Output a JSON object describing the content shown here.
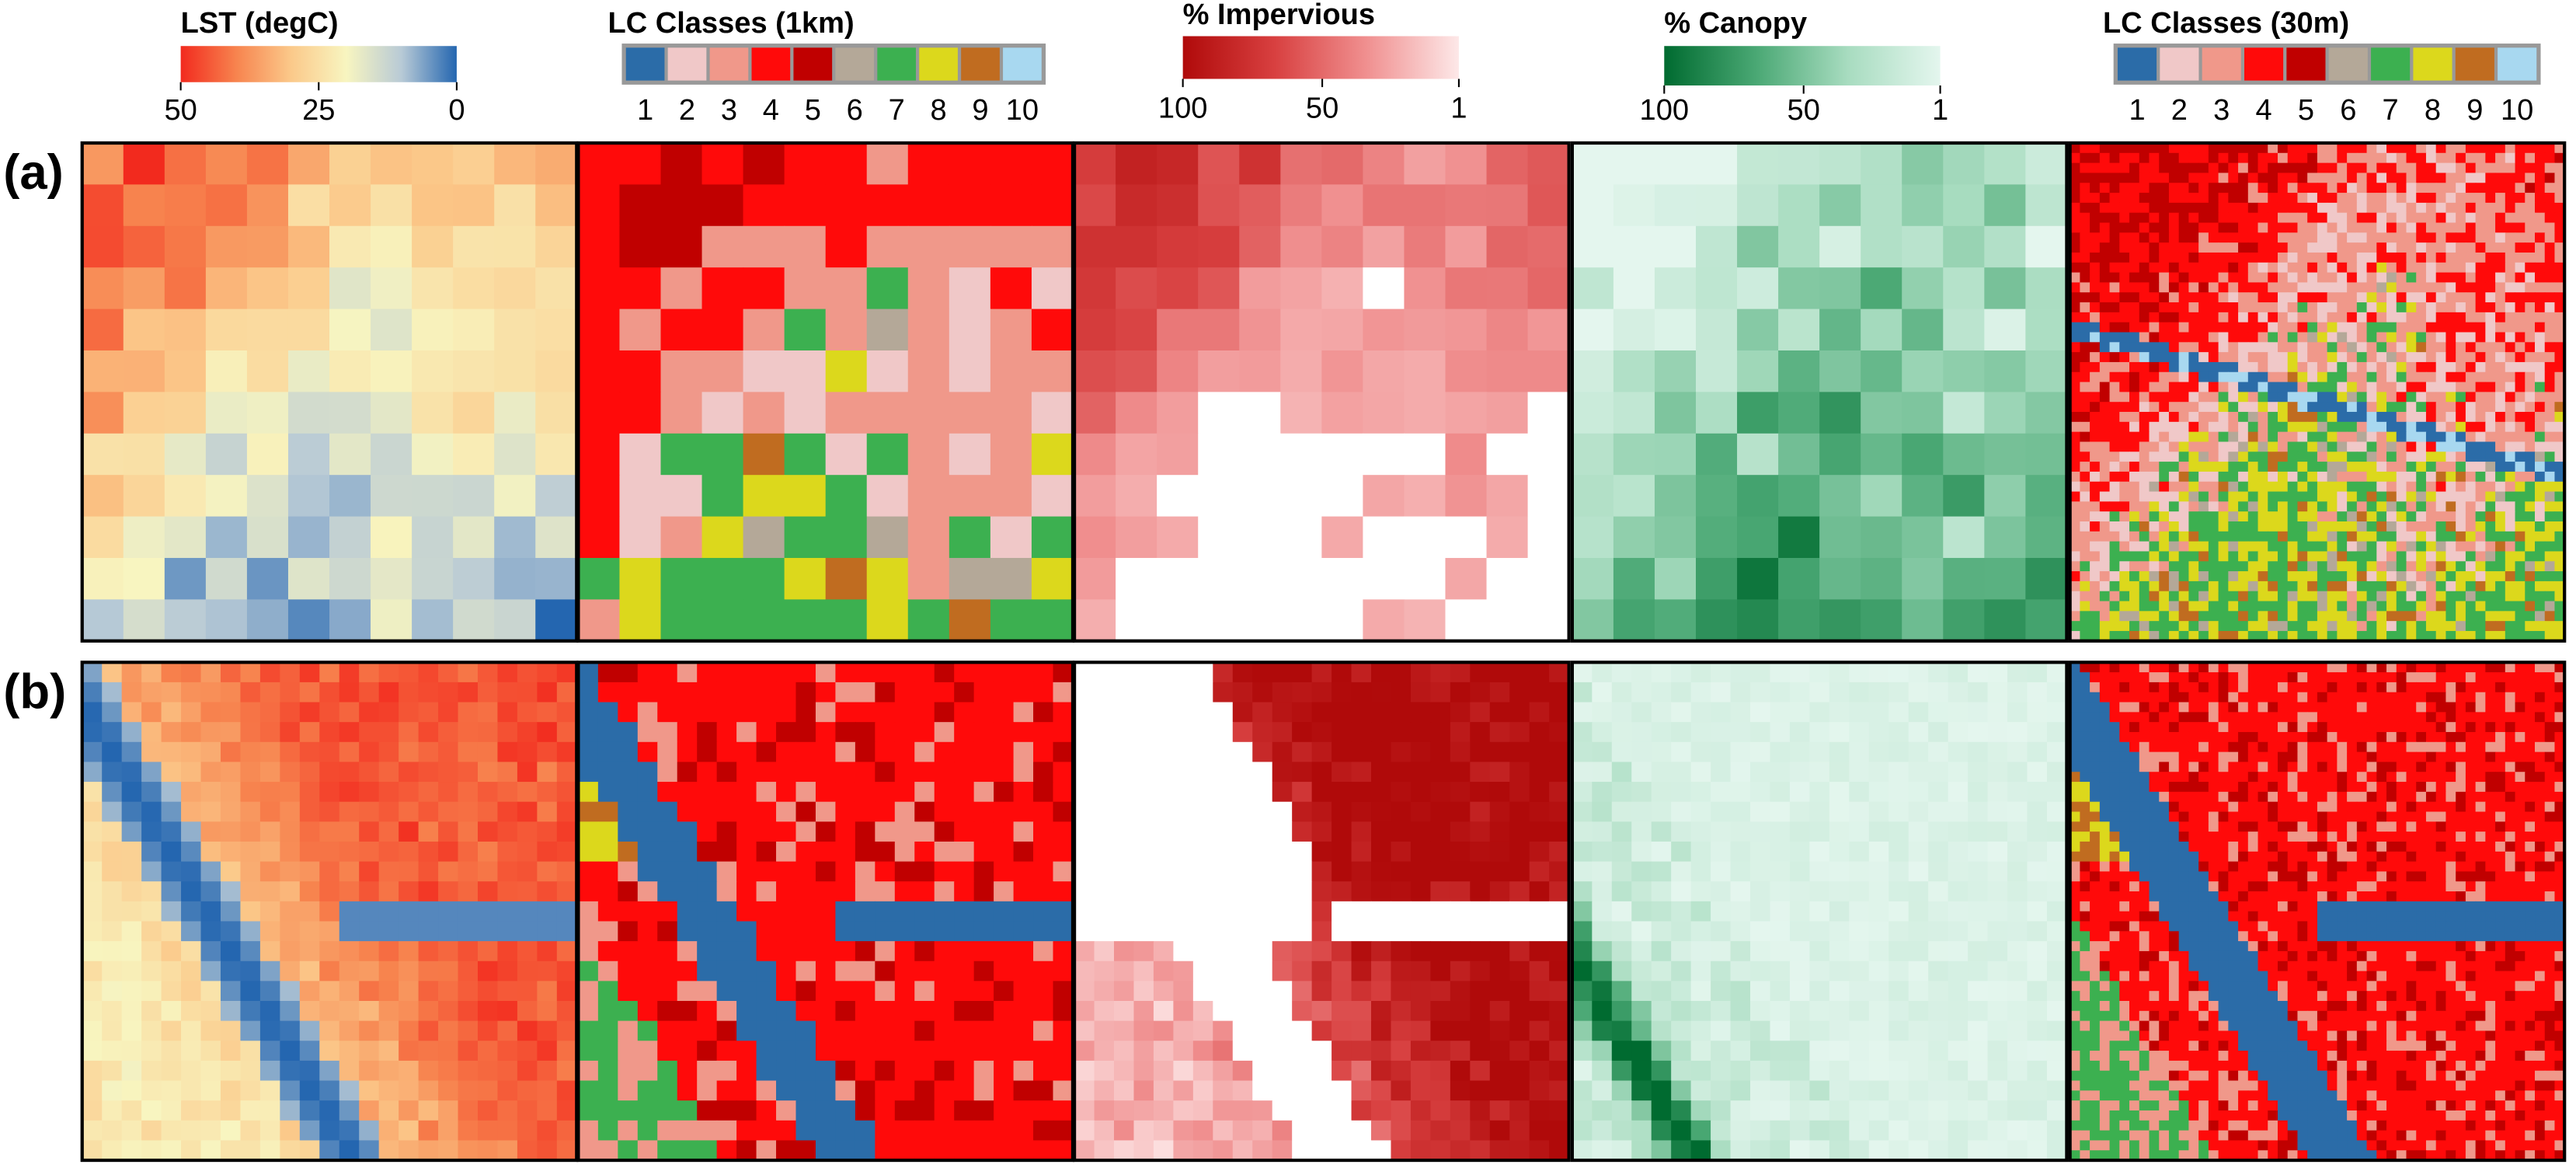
{
  "legends": [
    {
      "title": "LST (degC)",
      "ticks": [
        50,
        25,
        0
      ],
      "colors": [
        "#f22a1e",
        "#f7834e",
        "#fbc98a",
        "#f8f5c0",
        "#b8cad6",
        "#2466b0"
      ]
    },
    {
      "title": "LC Classes (1km)",
      "classes": [
        1,
        2,
        3,
        4,
        5,
        6,
        7,
        8,
        9,
        10
      ]
    },
    {
      "title": "% Impervious",
      "ticks": [
        100,
        50,
        1
      ],
      "colors": [
        "#b00a0a",
        "#d84040",
        "#f09090",
        "#fde8e8"
      ]
    },
    {
      "title": "% Canopy",
      "ticks": [
        100,
        50,
        1
      ],
      "colors": [
        "#006b30",
        "#4aa874",
        "#a8dcc0",
        "#e4f6ee"
      ]
    },
    {
      "title": "LC Classes (30m)",
      "classes": [
        1,
        2,
        3,
        4,
        5,
        6,
        7,
        8,
        9,
        10
      ]
    }
  ],
  "class_colors": [
    "#2b6ca8",
    "#f0c8c8",
    "#f0988a",
    "#ff0a0a",
    "#c00000",
    "#b4a898",
    "#3cb050",
    "#dcd81c",
    "#c06c20",
    "#a8d8f0"
  ],
  "rows": [
    {
      "label": "(a)"
    },
    {
      "label": "(b)"
    }
  ]
}
